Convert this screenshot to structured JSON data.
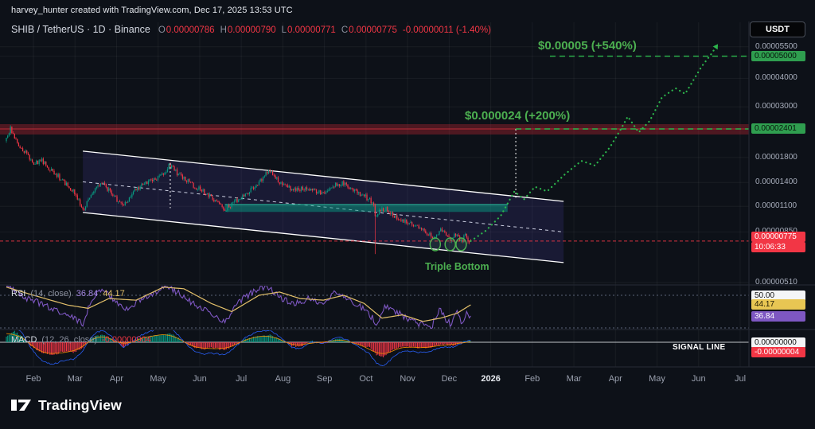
{
  "attribution": {
    "text": "harvey_hunter created with TradingView.com, Dec 17, 2025 13:53 UTC"
  },
  "header": {
    "symbol_line": "SHIB / TetherUS · 1D · Binance",
    "ohlc": {
      "o_label": "O",
      "o_value": "0.00000786",
      "h_label": "H",
      "h_value": "0.00000790",
      "l_label": "L",
      "l_value": "0.00000771",
      "c_label": "C",
      "c_value": "0.00000775",
      "change": "-0.00000011 (-1.40%)"
    },
    "currency_button": "USDT"
  },
  "annotations": {
    "target_upper": "$0.00005 (+540%)",
    "target_mid": "$0.000024 (+200%)",
    "triple_bottom": "Triple Bottom",
    "signal_line": "SIGNAL LINE"
  },
  "price_axis": {
    "plain_labels": [
      {
        "text": "0.00005500",
        "price": 5.5e-05
      },
      {
        "text": "0.00004000",
        "price": 4e-05
      },
      {
        "text": "0.00003000",
        "price": 3e-05
      },
      {
        "text": "0.00001800",
        "price": 1.8e-05
      },
      {
        "text": "0.00001400",
        "price": 1.4e-05
      },
      {
        "text": "0.00001100",
        "price": 1.1e-05
      },
      {
        "text": "0.00000850",
        "price": 8.5e-06
      },
      {
        "text": "0.00000510",
        "price": 5.1e-06
      }
    ],
    "green_badges": [
      {
        "text": "0.00005000",
        "price": 5e-05
      },
      {
        "text": "0.00002401",
        "price": 2.401e-05
      }
    ],
    "last_price": {
      "text": "0.00000775",
      "price": 7.75e-06,
      "countdown": "10:06:33"
    }
  },
  "time_axis": {
    "labels": [
      "Feb",
      "Mar",
      "Apr",
      "May",
      "Jun",
      "Jul",
      "Aug",
      "Sep",
      "Oct",
      "Nov",
      "Dec",
      "2026",
      "Feb",
      "Mar",
      "Apr",
      "May",
      "Jun",
      "Jul"
    ],
    "highlight": "2026"
  },
  "rsi_panel": {
    "title": "RSI",
    "params": "(14, close)",
    "value_main": "36.84",
    "value_ma": "44.17",
    "badges": {
      "level": "50.00",
      "ma": "44.17",
      "main": "36.84"
    }
  },
  "macd_panel": {
    "title": "MACD",
    "params": "(12, 26, close)",
    "value": "-0.00000004",
    "badges": {
      "zero": "0.00000000",
      "signal": "-0.00000004"
    }
  },
  "footer": {
    "logo_text": "TradingView"
  },
  "chart_data": {
    "type": "candlestick",
    "title": "SHIB / TetherUS · 1D · Binance",
    "last_candle": {
      "open": 7.86e-06,
      "high": 7.9e-06,
      "low": 7.71e-06,
      "close": 7.75e-06,
      "change": -1.1e-07,
      "change_pct": -1.4
    },
    "y_axis": {
      "scale": "log",
      "grid_ticks": [
        5.5e-05,
        5e-05,
        4e-05,
        3e-05,
        1.8e-05,
        1.4e-05,
        1.1e-05,
        8.5e-06,
        5.1e-06
      ]
    },
    "x_axis": {
      "month_labels": [
        "Feb",
        "Mar",
        "Apr",
        "May",
        "Jun",
        "Jul",
        "Aug",
        "Sep",
        "Oct",
        "Nov",
        "Dec",
        "2026",
        "Feb",
        "Mar",
        "Apr",
        "May",
        "Jun",
        "Jul"
      ],
      "candles_span_days": 340
    },
    "price_close_anchors": [
      [
        0,
        2.15e-05
      ],
      [
        3,
        2.4e-05
      ],
      [
        8,
        2.05e-05
      ],
      [
        14,
        1.9e-05
      ],
      [
        20,
        1.7e-05
      ],
      [
        26,
        1.75e-05
      ],
      [
        32,
        1.6e-05
      ],
      [
        40,
        1.45e-05
      ],
      [
        48,
        1.3e-05
      ],
      [
        53,
        1.18e-05
      ],
      [
        56,
        1.05e-05
      ],
      [
        60,
        1.18e-05
      ],
      [
        64,
        1.3e-05
      ],
      [
        70,
        1.4e-05
      ],
      [
        76,
        1.28e-05
      ],
      [
        82,
        1.15e-05
      ],
      [
        86,
        1.1e-05
      ],
      [
        92,
        1.25e-05
      ],
      [
        98,
        1.35e-05
      ],
      [
        105,
        1.42e-05
      ],
      [
        112,
        1.48e-05
      ],
      [
        117,
        1.58e-05
      ],
      [
        119,
        1.68e-05
      ],
      [
        123,
        1.58e-05
      ],
      [
        128,
        1.48e-05
      ],
      [
        134,
        1.4e-05
      ],
      [
        141,
        1.31e-05
      ],
      [
        148,
        1.24e-05
      ],
      [
        155,
        1.14e-05
      ],
      [
        160,
        1.07e-05
      ],
      [
        165,
        1.12e-05
      ],
      [
        171,
        1.2e-05
      ],
      [
        178,
        1.28e-05
      ],
      [
        185,
        1.4e-05
      ],
      [
        190,
        1.52e-05
      ],
      [
        194,
        1.56e-05
      ],
      [
        199,
        1.42e-05
      ],
      [
        205,
        1.34e-05
      ],
      [
        212,
        1.29e-05
      ],
      [
        219,
        1.33e-05
      ],
      [
        226,
        1.28e-05
      ],
      [
        233,
        1.25e-05
      ],
      [
        240,
        1.36e-05
      ],
      [
        246,
        1.39e-05
      ],
      [
        252,
        1.31e-05
      ],
      [
        259,
        1.25e-05
      ],
      [
        266,
        1.18e-05
      ],
      [
        269,
        1.12e-05
      ],
      [
        270,
        1e-05
      ],
      [
        273,
        1.06e-05
      ],
      [
        278,
        1.08e-05
      ],
      [
        284,
        1e-05
      ],
      [
        290,
        9.6e-06
      ],
      [
        297,
        9.2e-06
      ],
      [
        303,
        8.8e-06
      ],
      [
        309,
        8.3e-06
      ],
      [
        314,
        8e-06
      ],
      [
        318,
        8.6e-06
      ],
      [
        322,
        8.2e-06
      ],
      [
        325,
        7.8e-06
      ],
      [
        329,
        8.35e-06
      ],
      [
        333,
        7.7e-06
      ],
      [
        336,
        8.25e-06
      ],
      [
        338,
        7.85e-06
      ],
      [
        340,
        7.75e-06
      ]
    ],
    "crash_wick": {
      "day": 270,
      "low": 6.8e-06
    },
    "channel": {
      "upper_start": {
        "day": 56,
        "price": 1.92e-05
      },
      "upper_end": {
        "day": 408,
        "price": 1.157e-05
      },
      "lower_start": {
        "day": 56,
        "price": 1.034e-05
      },
      "lower_end": {
        "day": 408,
        "price": 6.24e-06
      }
    },
    "resistance_zone": {
      "top": 2.52e-05,
      "bottom": 2.27e-05,
      "mid": 2.401e-05
    },
    "support_zone": {
      "top": 1.12e-05,
      "bottom": 1.04e-05,
      "day_start": 160,
      "day_end": 367
    },
    "measure_lines": [
      {
        "day": 120,
        "from": 1.7e-05,
        "to": 1.08e-05
      },
      {
        "day": 373,
        "from": 2.401e-05,
        "to": 1.2e-05
      }
    ],
    "targets": [
      {
        "label": "$0.000024 (+200%)",
        "price": 2.401e-05,
        "pct": 200,
        "line_start_day": 373
      },
      {
        "label": "$0.00005 (+540%)",
        "price": 5e-05,
        "pct": 540,
        "line_start_day": 398
      }
    ],
    "projection_path": [
      [
        340,
        7.75e-06
      ],
      [
        351,
        8.6e-06
      ],
      [
        362,
        1e-05
      ],
      [
        372,
        1.28e-05
      ],
      [
        379,
        1.18e-05
      ],
      [
        387,
        1.34e-05
      ],
      [
        396,
        1.28e-05
      ],
      [
        409,
        1.52e-05
      ],
      [
        421,
        1.74e-05
      ],
      [
        431,
        1.66e-05
      ],
      [
        442,
        2e-05
      ],
      [
        450,
        2.4e-05
      ],
      [
        455,
        2.72e-05
      ],
      [
        463,
        2.32e-05
      ],
      [
        471,
        2.6e-05
      ],
      [
        480,
        3.3e-05
      ],
      [
        490,
        3.62e-05
      ],
      [
        497,
        3.42e-05
      ],
      [
        509,
        4.5e-05
      ],
      [
        516,
        5.1e-05
      ],
      [
        521,
        5.65e-05
      ]
    ],
    "triple_bottom": {
      "label": "Triple Bottom",
      "days": [
        314,
        325,
        333
      ],
      "cup_price": 7.5e-06
    },
    "rsi": {
      "period": 14,
      "source": "close",
      "current": 36.84,
      "ma_current": 44.17,
      "level_lines": [
        50,
        30
      ],
      "anchors": [
        [
          0,
          56
        ],
        [
          10,
          50
        ],
        [
          22,
          46
        ],
        [
          35,
          41
        ],
        [
          48,
          37
        ],
        [
          56,
          32
        ],
        [
          62,
          47
        ],
        [
          70,
          54
        ],
        [
          80,
          46
        ],
        [
          90,
          41
        ],
        [
          100,
          49
        ],
        [
          110,
          52
        ],
        [
          118,
          55
        ],
        [
          125,
          52
        ],
        [
          133,
          47
        ],
        [
          141,
          43
        ],
        [
          150,
          39
        ],
        [
          160,
          33
        ],
        [
          170,
          46
        ],
        [
          181,
          52
        ],
        [
          191,
          56
        ],
        [
          200,
          49
        ],
        [
          210,
          44
        ],
        [
          221,
          48
        ],
        [
          231,
          45
        ],
        [
          241,
          52
        ],
        [
          251,
          47
        ],
        [
          261,
          42
        ],
        [
          268,
          36
        ],
        [
          271,
          30
        ],
        [
          277,
          43
        ],
        [
          287,
          39
        ],
        [
          296,
          35
        ],
        [
          304,
          32
        ],
        [
          311,
          30
        ],
        [
          317,
          42
        ],
        [
          322,
          35
        ],
        [
          326,
          32
        ],
        [
          330,
          41
        ],
        [
          334,
          32
        ],
        [
          337,
          40
        ],
        [
          340,
          36.84
        ]
      ],
      "ma_anchors": [
        [
          0,
          55
        ],
        [
          20,
          50
        ],
        [
          45,
          44
        ],
        [
          60,
          42
        ],
        [
          75,
          48
        ],
        [
          95,
          47
        ],
        [
          115,
          55
        ],
        [
          130,
          54
        ],
        [
          150,
          45
        ],
        [
          165,
          40
        ],
        [
          185,
          50
        ],
        [
          200,
          52
        ],
        [
          215,
          48
        ],
        [
          232,
          47
        ],
        [
          247,
          50
        ],
        [
          262,
          45
        ],
        [
          275,
          36
        ],
        [
          290,
          38
        ],
        [
          305,
          34
        ],
        [
          318,
          36
        ],
        [
          330,
          39
        ],
        [
          340,
          44.17
        ]
      ]
    },
    "macd": {
      "fast": 12,
      "slow": 26,
      "source": "close",
      "zero_level": 0.0,
      "signal_current": -4e-08,
      "histogram_anchors_1e8": [
        [
          0,
          2.5
        ],
        [
          6,
          4.2
        ],
        [
          12,
          2
        ],
        [
          18,
          -1.5
        ],
        [
          26,
          -4
        ],
        [
          34,
          -5
        ],
        [
          43,
          -3.5
        ],
        [
          50,
          -4
        ],
        [
          56,
          -2
        ],
        [
          63,
          1.8
        ],
        [
          70,
          3
        ],
        [
          78,
          1
        ],
        [
          86,
          -1.8
        ],
        [
          95,
          1.2
        ],
        [
          105,
          2.2
        ],
        [
          114,
          3
        ],
        [
          120,
          3.4
        ],
        [
          127,
          1.2
        ],
        [
          135,
          -1.5
        ],
        [
          143,
          -2.8
        ],
        [
          151,
          -2.2
        ],
        [
          160,
          -3
        ],
        [
          168,
          -1
        ],
        [
          176,
          1.4
        ],
        [
          186,
          2.4
        ],
        [
          193,
          2.8
        ],
        [
          201,
          1
        ],
        [
          209,
          -1.4
        ],
        [
          216,
          -1.8
        ],
        [
          223,
          0.6
        ],
        [
          232,
          -0.6
        ],
        [
          242,
          1.4
        ],
        [
          250,
          0.5
        ],
        [
          258,
          -1
        ],
        [
          266,
          -2.2
        ],
        [
          271,
          -4.8
        ],
        [
          276,
          -5.6
        ],
        [
          283,
          -3
        ],
        [
          291,
          -1.6
        ],
        [
          299,
          -2
        ],
        [
          307,
          -2.4
        ],
        [
          315,
          -1.4
        ],
        [
          321,
          -1
        ],
        [
          327,
          -1.2
        ],
        [
          332,
          -0.4
        ],
        [
          336,
          0.3
        ],
        [
          340,
          0.4
        ]
      ]
    },
    "colors": {
      "up": "#089981",
      "down": "#f23645",
      "projection": "#2db84d",
      "channel": "#ffffff",
      "rsi": "#7e57c2",
      "rsi_ma": "#e3c06a",
      "macd_line": "#2962ff",
      "signal_line": "#ff9800",
      "target_text": "#4caf50"
    }
  }
}
